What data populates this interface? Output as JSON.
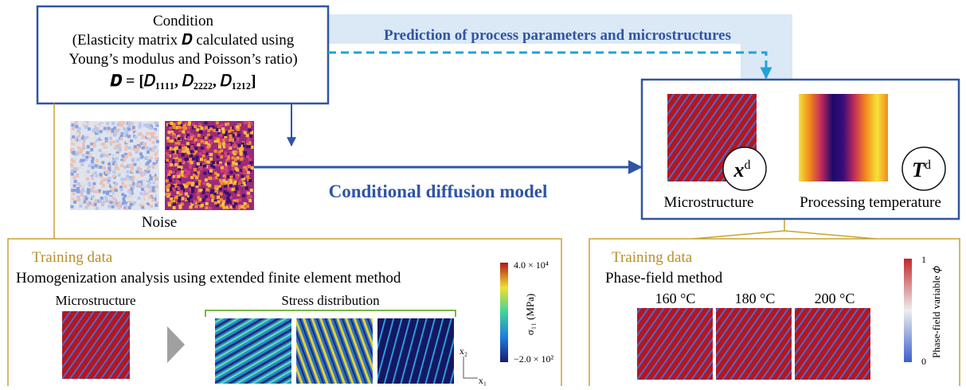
{
  "condition": {
    "title": "Condition",
    "line1": "(Elasticity matrix 𝑫 calculated using",
    "line2": "Young’s modulus and Poisson’s ratio)",
    "equation": "𝑫 = [𝐷₁₁₁₁, 𝐷₂₂₂₂, 𝐷₁₂₁₂]"
  },
  "prediction_label": "Prediction of process parameters and microstructures",
  "noise_label": "Noise",
  "model_label": "Conditional diffusion model",
  "outputs": [
    {
      "symbol": "x",
      "sup": "d",
      "label": "Microstructure"
    },
    {
      "symbol": "T",
      "sup": "d",
      "label": "Processing temperature"
    }
  ],
  "left_training": {
    "heading": "Training data",
    "method": "Homogenization analysis using extended finite element method",
    "micro_label": "Microstructure",
    "stress_label": "Stress distribution",
    "colorbar": {
      "max": "4.0 × 10⁴",
      "min": "−2.0 × 10²",
      "title": "σ₁₁ (MPa)"
    },
    "axes": {
      "x2": "x₂",
      "x1": "x₁"
    }
  },
  "right_training": {
    "heading": "Training data",
    "method": "Phase-field method",
    "temperatures": [
      "160 °C",
      "180 °C",
      "200 °C"
    ],
    "colorbar": {
      "max": "1",
      "min": "0",
      "title": "Phase-field variable 𝜙"
    }
  }
}
